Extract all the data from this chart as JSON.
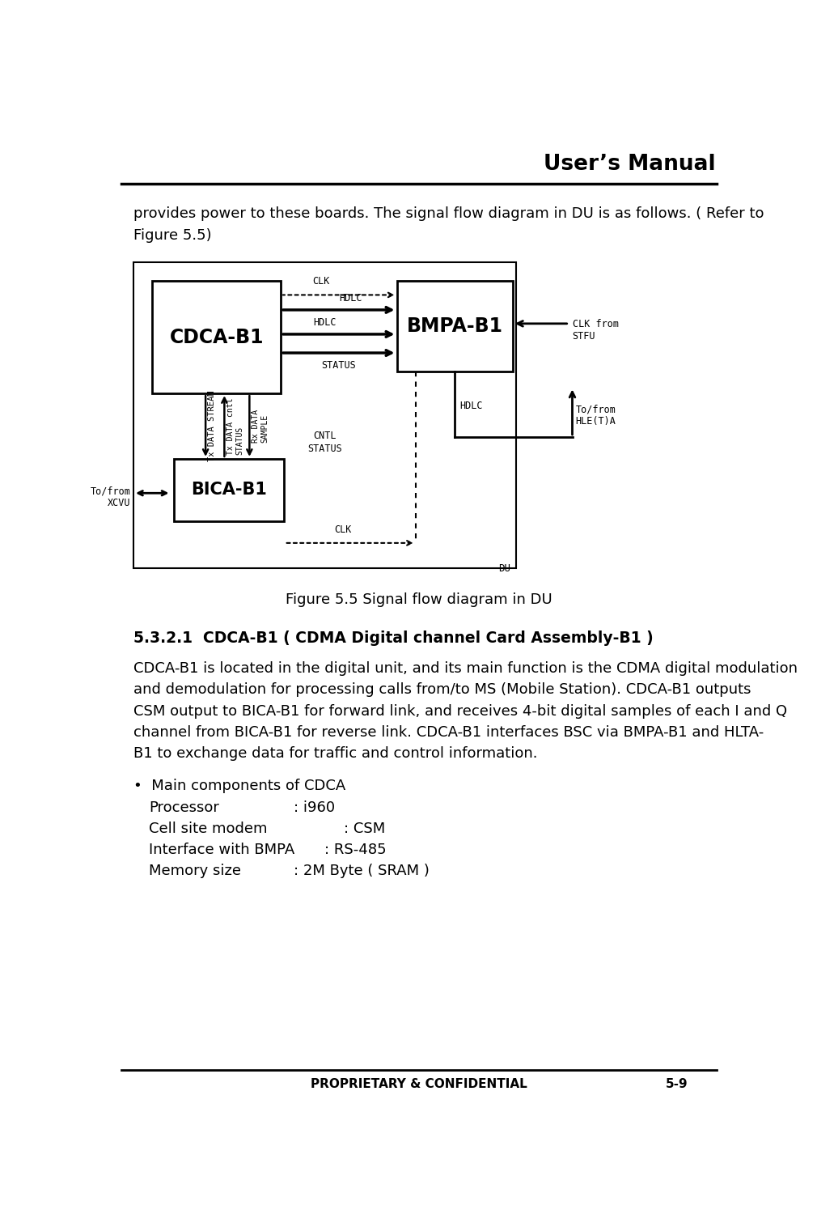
{
  "title": "User’s Manual",
  "footer_left": "PROPRIETARY & CONFIDENTIAL",
  "footer_right": "5-9",
  "para1": "provides power to these boards. The signal flow diagram in DU is as follows. ( Refer to",
  "para2": "Figure 5.5)",
  "fig_caption": "Figure 5.5 Signal flow diagram in DU",
  "section_title": "5.3.2.1  CDCA-B1 ( CDMA Digital channel Card Assembly-B1 )",
  "body_lines": [
    "CDCA-B1 is located in the digital unit, and its main function is the CDMA digital modulation",
    "and demodulation for processing calls from/to MS (Mobile Station). CDCA-B1 outputs",
    "CSM output to BICA-B1 for forward link, and receives 4-bit digital samples of each I and Q",
    "channel from BICA-B1 for reverse link. CDCA-B1 interfaces BSC via BMPA-B1 and HLTA-",
    "B1 to exchange data for traffic and control information."
  ],
  "bullet_header": "•  Main components of CDCA",
  "bullet_items": [
    [
      "Processor",
      ": i960",
      230
    ],
    [
      "Cell site modem",
      ": CSM",
      310
    ],
    [
      "Interface with BMPA  ",
      ": RS-485",
      280
    ],
    [
      "Memory size",
      ": 2M Byte ( SRAM )",
      230
    ]
  ],
  "bg_color": "#ffffff",
  "text_color": "#000000"
}
